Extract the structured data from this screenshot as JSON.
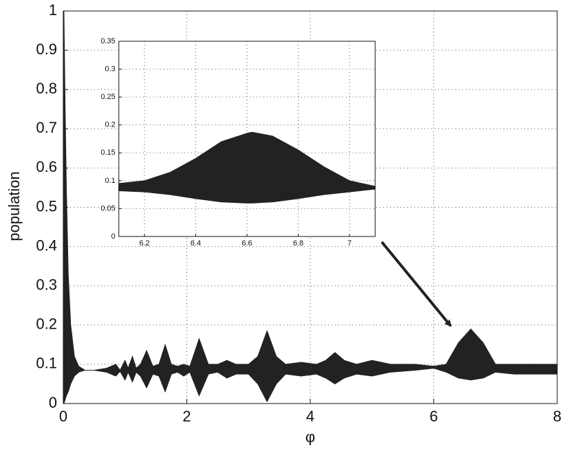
{
  "chart_data": [
    {
      "type": "area",
      "xlabel": "φ",
      "ylabel": "population",
      "x": [
        0,
        0.01,
        0.03,
        0.05,
        0.08,
        0.12,
        0.18,
        0.25,
        0.35,
        0.5,
        0.7,
        0.85,
        0.92,
        1.0,
        1.05,
        1.12,
        1.18,
        1.25,
        1.35,
        1.45,
        1.55,
        1.65,
        1.75,
        1.85,
        1.95,
        2.05,
        2.2,
        2.35,
        2.5,
        2.65,
        2.8,
        3.0,
        3.15,
        3.3,
        3.45,
        3.6,
        3.85,
        4.1,
        4.25,
        4.4,
        4.55,
        4.75,
        5.0,
        5.3,
        5.7,
        6.0,
        6.2,
        6.4,
        6.6,
        6.8,
        7.0,
        7.3,
        7.6,
        8.0
      ],
      "series": [
        {
          "color": "#222222",
          "values": [
            0,
            1,
            0.75,
            0.55,
            0.33,
            0.2,
            0.12,
            0.095,
            0.085,
            0.085,
            0.09,
            0.1,
            0.085,
            0.11,
            0.09,
            0.12,
            0.09,
            0.1,
            0.135,
            0.095,
            0.1,
            0.15,
            0.1,
            0.095,
            0.1,
            0.095,
            0.165,
            0.1,
            0.1,
            0.11,
            0.1,
            0.1,
            0.12,
            0.185,
            0.12,
            0.1,
            0.105,
            0.1,
            0.11,
            0.13,
            0.11,
            0.1,
            0.11,
            0.1,
            0.1,
            0.095,
            0.1,
            0.155,
            0.19,
            0.155,
            0.1,
            0.1,
            0.1,
            0.1
          ]
        },
        {
          "color": "#222222",
          "values": [
            0,
            0,
            0.01,
            0.02,
            0.03,
            0.05,
            0.07,
            0.08,
            0.085,
            0.085,
            0.08,
            0.07,
            0.082,
            0.06,
            0.08,
            0.055,
            0.08,
            0.07,
            0.04,
            0.075,
            0.07,
            0.03,
            0.075,
            0.08,
            0.07,
            0.08,
            0.02,
            0.075,
            0.08,
            0.065,
            0.075,
            0.075,
            0.05,
            0.005,
            0.05,
            0.075,
            0.07,
            0.075,
            0.065,
            0.05,
            0.065,
            0.075,
            0.07,
            0.08,
            0.085,
            0.09,
            0.08,
            0.065,
            0.06,
            0.065,
            0.08,
            0.075,
            0.075,
            0.075
          ]
        }
      ],
      "xlim": [
        0,
        8
      ],
      "xticks": [
        0,
        2,
        4,
        6,
        8
      ],
      "ylim": [
        0,
        1
      ],
      "yticks": [
        0,
        0.1,
        0.2,
        0.3,
        0.4,
        0.5,
        0.6,
        0.7,
        0.8,
        0.9,
        1
      ],
      "grid": true
    },
    {
      "type": "area",
      "x": [
        6.1,
        6.2,
        6.3,
        6.4,
        6.5,
        6.6,
        6.62,
        6.7,
        6.8,
        6.9,
        7.0,
        7.1
      ],
      "series": [
        {
          "color": "#222222",
          "values": [
            0.095,
            0.1,
            0.115,
            0.14,
            0.17,
            0.185,
            0.187,
            0.18,
            0.155,
            0.125,
            0.1,
            0.09
          ]
        },
        {
          "color": "#222222",
          "values": [
            0.082,
            0.08,
            0.075,
            0.068,
            0.062,
            0.06,
            0.06,
            0.062,
            0.068,
            0.075,
            0.08,
            0.085
          ]
        }
      ],
      "xlim": [
        6.1,
        7.1
      ],
      "xticks": [
        6.2,
        6.4,
        6.6,
        6.8,
        7
      ],
      "ylim": [
        0,
        0.35
      ],
      "yticks": [
        0,
        0.05,
        0.1,
        0.15,
        0.2,
        0.25,
        0.3,
        0.35
      ],
      "grid": true
    }
  ]
}
